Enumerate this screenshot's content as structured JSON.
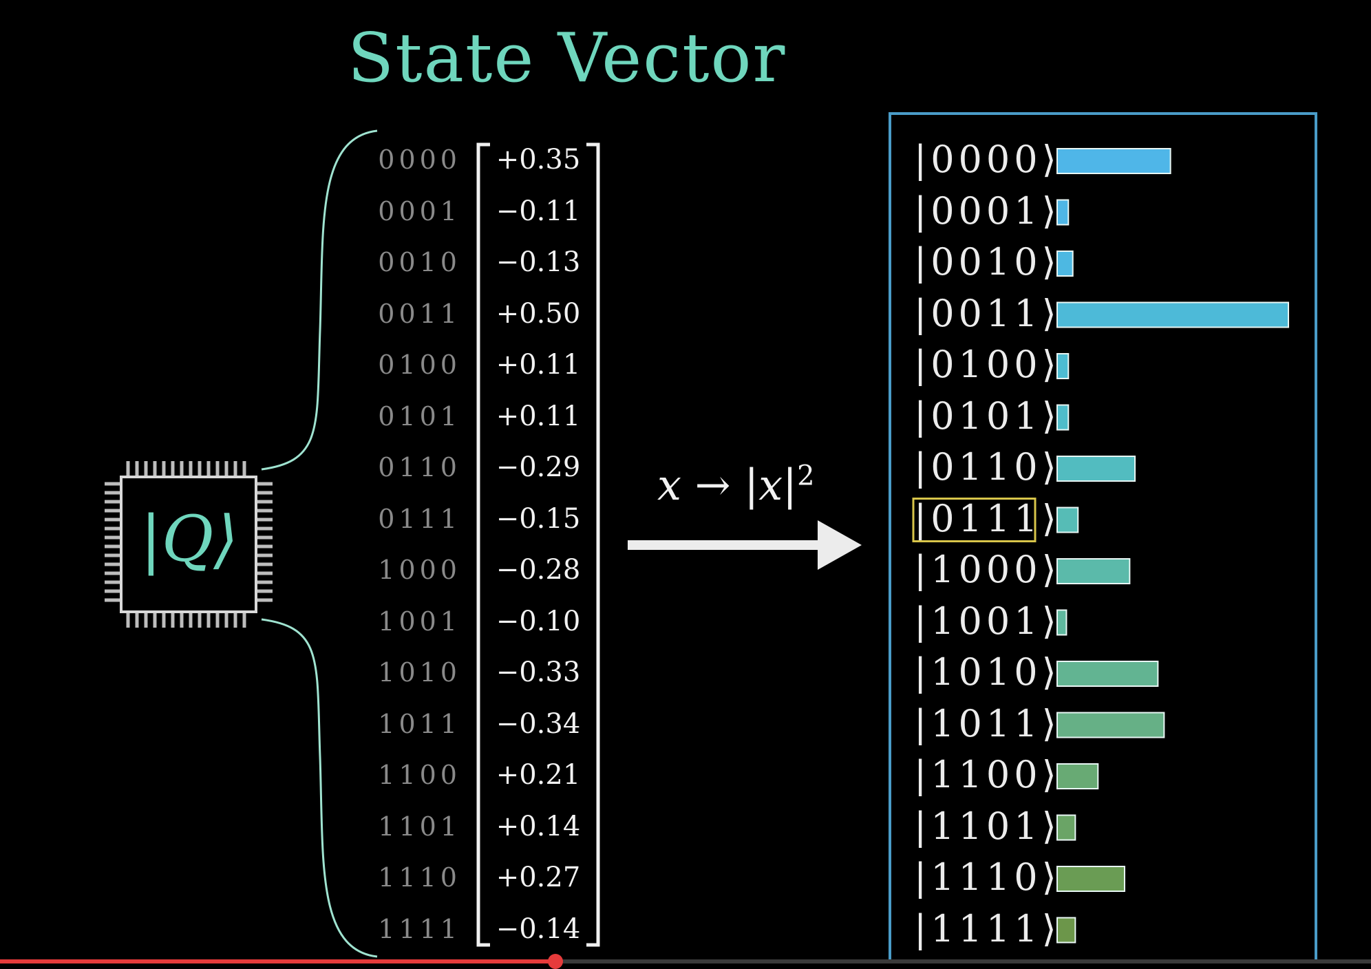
{
  "title": "State Vector",
  "chip": {
    "label": "|Q⟩",
    "name": "quantum-processor"
  },
  "formula": {
    "main": "x → |x|",
    "exponent": "2"
  },
  "states": [
    {
      "bits": "0000",
      "amplitude": "+0.35",
      "ket": "|0000⟩",
      "probability": 0.1225,
      "color": "#4fb6e8"
    },
    {
      "bits": "0001",
      "amplitude": "−0.11",
      "ket": "|0001⟩",
      "probability": 0.0121,
      "color": "#4fb6e6"
    },
    {
      "bits": "0010",
      "amplitude": "−0.13",
      "ket": "|0010⟩",
      "probability": 0.0169,
      "color": "#4db8e2"
    },
    {
      "bits": "0011",
      "amplitude": "+0.50",
      "ket": "|0011⟩",
      "probability": 0.25,
      "color": "#4dbad8"
    },
    {
      "bits": "0100",
      "amplitude": "+0.11",
      "ket": "|0100⟩",
      "probability": 0.0121,
      "color": "#4dbcd2"
    },
    {
      "bits": "0101",
      "amplitude": "+0.11",
      "ket": "|0101⟩",
      "probability": 0.0121,
      "color": "#4fbcca"
    },
    {
      "bits": "0110",
      "amplitude": "−0.29",
      "ket": "|0110⟩",
      "probability": 0.0841,
      "color": "#52bcc0"
    },
    {
      "bits": "0111",
      "amplitude": "−0.15",
      "ket": "|0111⟩",
      "probability": 0.0225,
      "color": "#56bcb6"
    },
    {
      "bits": "1000",
      "amplitude": "−0.28",
      "ket": "|1000⟩",
      "probability": 0.0784,
      "color": "#5bbaaa"
    },
    {
      "bits": "1001",
      "amplitude": "−0.10",
      "ket": "|1001⟩",
      "probability": 0.01,
      "color": "#5fb89e"
    },
    {
      "bits": "1010",
      "amplitude": "−0.33",
      "ket": "|1010⟩",
      "probability": 0.1089,
      "color": "#62b492"
    },
    {
      "bits": "1011",
      "amplitude": "−0.34",
      "ket": "|1011⟩",
      "probability": 0.1156,
      "color": "#66b086"
    },
    {
      "bits": "1100",
      "amplitude": "+0.21",
      "ket": "|1100⟩",
      "probability": 0.0441,
      "color": "#68aa74"
    },
    {
      "bits": "1101",
      "amplitude": "+0.14",
      "ket": "|1101⟩",
      "probability": 0.0196,
      "color": "#6aa466"
    },
    {
      "bits": "1110",
      "amplitude": "+0.27",
      "ket": "|1110⟩",
      "probability": 0.0729,
      "color": "#6a9c54"
    },
    {
      "bits": "1111",
      "amplitude": "−0.14",
      "ket": "|1111⟩",
      "probability": 0.0196,
      "color": "#6c964a"
    }
  ],
  "highlighted_state": "0111",
  "colors": {
    "accent": "#6fd6bd",
    "panel_border": "#4a9cc8",
    "highlight": "#d8c54a",
    "chip_stroke": "#d9d9d9"
  },
  "video_progress": 0.405
}
